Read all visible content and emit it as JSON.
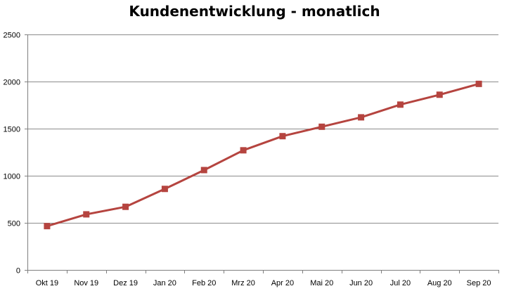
{
  "chart_data": {
    "type": "line",
    "title": "Kundenentwicklung - monatlich",
    "xlabel": "",
    "ylabel": "",
    "categories": [
      "Okt 19",
      "Nov 19",
      "Dez 19",
      "Jan 20",
      "Feb 20",
      "Mrz 20",
      "Apr 20",
      "Mai 20",
      "Jun 20",
      "Jul 20",
      "Aug 20",
      "Sep 20"
    ],
    "series": [
      {
        "values": [
          465,
          590,
          670,
          860,
          1060,
          1270,
          1420,
          1520,
          1620,
          1755,
          1860,
          1975
        ],
        "color": "#B5443F",
        "marker": "square"
      }
    ],
    "ylim": [
      0,
      2500
    ],
    "yticks": [
      0,
      500,
      1000,
      1500,
      2000,
      2500
    ],
    "ytick_labels": [
      "0",
      "500",
      "1000",
      "1500",
      "2000",
      "2500"
    ],
    "grid": true,
    "legend": "none",
    "gridline_color": "#8C8C8C",
    "axis_color": "#7F7F7F"
  }
}
